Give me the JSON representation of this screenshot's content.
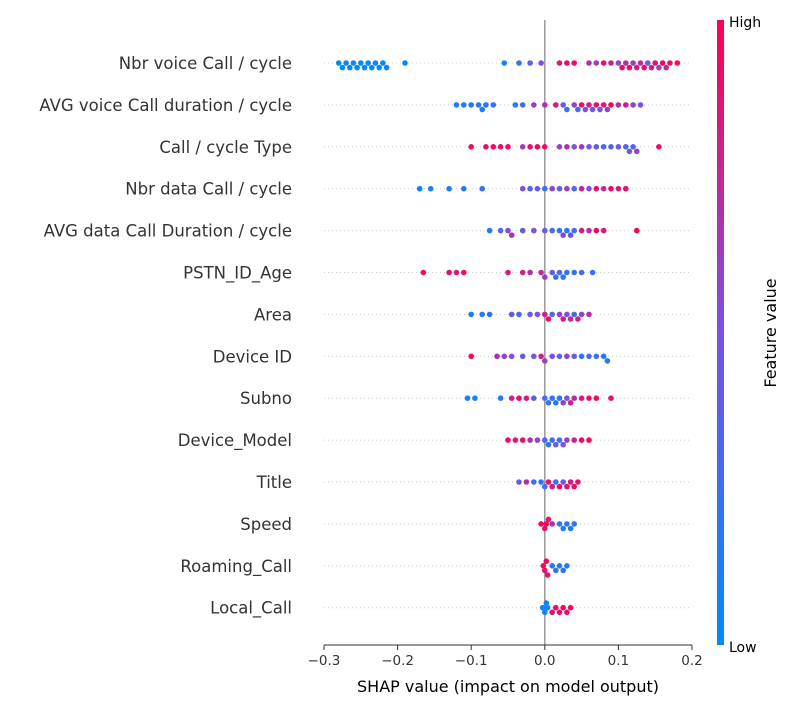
{
  "chart_data": {
    "type": "scatter",
    "subtype": "shap-beeswarm",
    "title": "",
    "xlabel": "SHAP value (impact on model output)",
    "xlim": [
      -0.3,
      0.2
    ],
    "xticks": [
      -0.3,
      -0.2,
      -0.1,
      0.0,
      0.1,
      0.2
    ],
    "xtick_labels": [
      "−0.3",
      "−0.2",
      "−0.1",
      "0.0",
      "0.1",
      "0.2"
    ],
    "colorbar": {
      "label": "Feature value",
      "high": "High",
      "low": "Low",
      "low_color": "#008bfb",
      "mid_color": "#7c52e0",
      "high_color": "#ff0052"
    },
    "features": [
      {
        "name": "Nbr voice Call / cycle",
        "points": [
          [
            -0.28,
            0
          ],
          [
            -0.275,
            0
          ],
          [
            -0.27,
            0.1
          ],
          [
            -0.265,
            0
          ],
          [
            -0.26,
            0.1
          ],
          [
            -0.255,
            0
          ],
          [
            -0.25,
            0
          ],
          [
            -0.245,
            0.1
          ],
          [
            -0.24,
            0
          ],
          [
            -0.235,
            0
          ],
          [
            -0.23,
            0.1
          ],
          [
            -0.225,
            0
          ],
          [
            -0.22,
            0
          ],
          [
            -0.215,
            0.1
          ],
          [
            -0.19,
            0
          ],
          [
            -0.055,
            0.1
          ],
          [
            -0.035,
            0.2
          ],
          [
            -0.02,
            0.4
          ],
          [
            -0.005,
            0.5
          ],
          [
            0.02,
            0.85
          ],
          [
            0.03,
            0.9
          ],
          [
            0.04,
            0.95
          ],
          [
            0.06,
            0.7
          ],
          [
            0.07,
            0.6
          ],
          [
            0.08,
            0.9
          ],
          [
            0.09,
            0.8
          ],
          [
            0.1,
            0.6
          ],
          [
            0.105,
            0.9
          ],
          [
            0.11,
            0.7
          ],
          [
            0.115,
            0.95
          ],
          [
            0.12,
            0.6
          ],
          [
            0.125,
            0.85
          ],
          [
            0.13,
            0.7
          ],
          [
            0.135,
            0.95
          ],
          [
            0.14,
            0.5
          ],
          [
            0.145,
            0.8
          ],
          [
            0.15,
            0.9
          ],
          [
            0.155,
            0.6
          ],
          [
            0.16,
            0.95
          ],
          [
            0.165,
            0.7
          ],
          [
            0.17,
            0.9
          ],
          [
            0.18,
            0.95
          ]
        ]
      },
      {
        "name": "AVG voice Call duration / cycle",
        "points": [
          [
            -0.12,
            0.1
          ],
          [
            -0.11,
            0.15
          ],
          [
            -0.1,
            0.1
          ],
          [
            -0.09,
            0.2
          ],
          [
            -0.085,
            0.1
          ],
          [
            -0.08,
            0.15
          ],
          [
            -0.07,
            0.2
          ],
          [
            -0.04,
            0.1
          ],
          [
            -0.03,
            0.3
          ],
          [
            -0.015,
            0.6
          ],
          [
            0.0,
            0.7
          ],
          [
            0.015,
            0.85
          ],
          [
            0.025,
            0.4
          ],
          [
            0.03,
            0.2
          ],
          [
            0.04,
            0.6
          ],
          [
            0.045,
            0.3
          ],
          [
            0.05,
            0.9
          ],
          [
            0.055,
            0.5
          ],
          [
            0.06,
            0.8
          ],
          [
            0.065,
            0.45
          ],
          [
            0.07,
            0.9
          ],
          [
            0.075,
            0.5
          ],
          [
            0.08,
            0.85
          ],
          [
            0.085,
            0.6
          ],
          [
            0.09,
            0.95
          ],
          [
            0.1,
            0.7
          ],
          [
            0.11,
            0.8
          ],
          [
            0.12,
            0.6
          ],
          [
            0.13,
            0.5
          ]
        ]
      },
      {
        "name": "Call / cycle Type",
        "points": [
          [
            -0.1,
            0.95
          ],
          [
            -0.08,
            0.9
          ],
          [
            -0.07,
            0.95
          ],
          [
            -0.06,
            0.9
          ],
          [
            -0.05,
            0.95
          ],
          [
            -0.03,
            0.6
          ],
          [
            -0.02,
            0.9
          ],
          [
            -0.01,
            0.95
          ],
          [
            0.0,
            0.9
          ],
          [
            0.02,
            0.6
          ],
          [
            0.03,
            0.7
          ],
          [
            0.04,
            0.5
          ],
          [
            0.05,
            0.65
          ],
          [
            0.06,
            0.5
          ],
          [
            0.07,
            0.4
          ],
          [
            0.08,
            0.3
          ],
          [
            0.09,
            0.35
          ],
          [
            0.1,
            0.4
          ],
          [
            0.11,
            0.3
          ],
          [
            0.115,
            0.45
          ],
          [
            0.12,
            0.35
          ],
          [
            0.125,
            0.6
          ],
          [
            0.155,
            0.9
          ]
        ]
      },
      {
        "name": "Nbr data Call / cycle",
        "points": [
          [
            -0.17,
            0.05
          ],
          [
            -0.155,
            0.1
          ],
          [
            -0.13,
            0.1
          ],
          [
            -0.11,
            0.15
          ],
          [
            -0.085,
            0.2
          ],
          [
            -0.03,
            0.5
          ],
          [
            -0.02,
            0.3
          ],
          [
            -0.01,
            0.45
          ],
          [
            0.0,
            0.2
          ],
          [
            0.01,
            0.6
          ],
          [
            0.02,
            0.4
          ],
          [
            0.03,
            0.6
          ],
          [
            0.04,
            0.3
          ],
          [
            0.05,
            0.8
          ],
          [
            0.06,
            0.5
          ],
          [
            0.07,
            0.9
          ],
          [
            0.08,
            0.7
          ],
          [
            0.09,
            0.95
          ],
          [
            0.1,
            0.85
          ],
          [
            0.11,
            0.9
          ]
        ]
      },
      {
        "name": "AVG data Call Duration / cycle",
        "points": [
          [
            -0.075,
            0.15
          ],
          [
            -0.06,
            0.3
          ],
          [
            -0.05,
            0.55
          ],
          [
            -0.045,
            0.7
          ],
          [
            -0.03,
            0.4
          ],
          [
            -0.015,
            0.5
          ],
          [
            0.0,
            0.4
          ],
          [
            0.01,
            0.3
          ],
          [
            0.02,
            0.2
          ],
          [
            0.025,
            0.6
          ],
          [
            0.03,
            0.15
          ],
          [
            0.035,
            0.4
          ],
          [
            0.04,
            0.25
          ],
          [
            0.05,
            0.8
          ],
          [
            0.06,
            0.7
          ],
          [
            0.07,
            0.9
          ],
          [
            0.08,
            0.85
          ],
          [
            0.125,
            0.95
          ]
        ]
      },
      {
        "name": "PSTN_ID_Age",
        "points": [
          [
            -0.165,
            0.95
          ],
          [
            -0.13,
            0.9
          ],
          [
            -0.12,
            0.85
          ],
          [
            -0.11,
            0.9
          ],
          [
            -0.05,
            0.85
          ],
          [
            -0.03,
            0.8
          ],
          [
            -0.02,
            0.7
          ],
          [
            -0.005,
            0.75
          ],
          [
            0.0,
            0.6
          ],
          [
            0.01,
            0.4
          ],
          [
            0.015,
            0.2
          ],
          [
            0.02,
            0.3
          ],
          [
            0.025,
            0.15
          ],
          [
            0.03,
            0.25
          ],
          [
            0.04,
            0.2
          ],
          [
            0.05,
            0.3
          ],
          [
            0.065,
            0.2
          ]
        ]
      },
      {
        "name": "Area",
        "points": [
          [
            -0.1,
            0.1
          ],
          [
            -0.085,
            0.15
          ],
          [
            -0.075,
            0.2
          ],
          [
            -0.045,
            0.4
          ],
          [
            -0.035,
            0.3
          ],
          [
            -0.02,
            0.45
          ],
          [
            -0.01,
            0.5
          ],
          [
            0.0,
            0.8
          ],
          [
            0.005,
            0.9
          ],
          [
            0.01,
            0.3
          ],
          [
            0.02,
            0.6
          ],
          [
            0.025,
            0.85
          ],
          [
            0.03,
            0.5
          ],
          [
            0.035,
            0.7
          ],
          [
            0.04,
            0.3
          ],
          [
            0.045,
            0.8
          ],
          [
            0.05,
            0.6
          ],
          [
            0.06,
            0.7
          ]
        ]
      },
      {
        "name": "Device ID",
        "points": [
          [
            -0.1,
            0.95
          ],
          [
            -0.065,
            0.7
          ],
          [
            -0.055,
            0.6
          ],
          [
            -0.045,
            0.5
          ],
          [
            -0.03,
            0.4
          ],
          [
            -0.015,
            0.45
          ],
          [
            -0.005,
            0.8
          ],
          [
            0.0,
            0.6
          ],
          [
            0.01,
            0.5
          ],
          [
            0.02,
            0.35
          ],
          [
            0.03,
            0.6
          ],
          [
            0.04,
            0.4
          ],
          [
            0.05,
            0.2
          ],
          [
            0.06,
            0.3
          ],
          [
            0.07,
            0.25
          ],
          [
            0.08,
            0.15
          ],
          [
            0.085,
            0.2
          ]
        ]
      },
      {
        "name": "Subno",
        "points": [
          [
            -0.105,
            0.1
          ],
          [
            -0.095,
            0.1
          ],
          [
            -0.06,
            0.15
          ],
          [
            -0.045,
            0.8
          ],
          [
            -0.035,
            0.9
          ],
          [
            -0.025,
            0.85
          ],
          [
            -0.015,
            0.4
          ],
          [
            0.0,
            0.3
          ],
          [
            0.005,
            0.2
          ],
          [
            0.01,
            0.25
          ],
          [
            0.015,
            0.15
          ],
          [
            0.02,
            0.2
          ],
          [
            0.025,
            0.6
          ],
          [
            0.03,
            0.5
          ],
          [
            0.035,
            0.8
          ],
          [
            0.04,
            0.7
          ],
          [
            0.05,
            0.85
          ],
          [
            0.06,
            0.9
          ],
          [
            0.07,
            0.95
          ],
          [
            0.09,
            0.9
          ]
        ]
      },
      {
        "name": "Device_Model",
        "points": [
          [
            -0.05,
            0.9
          ],
          [
            -0.04,
            0.85
          ],
          [
            -0.03,
            0.9
          ],
          [
            -0.02,
            0.7
          ],
          [
            -0.01,
            0.6
          ],
          [
            0.0,
            0.3
          ],
          [
            0.005,
            0.2
          ],
          [
            0.01,
            0.25
          ],
          [
            0.015,
            0.4
          ],
          [
            0.02,
            0.3
          ],
          [
            0.025,
            0.5
          ],
          [
            0.03,
            0.6
          ],
          [
            0.04,
            0.8
          ],
          [
            0.05,
            0.9
          ],
          [
            0.06,
            0.95
          ]
        ]
      },
      {
        "name": "Title",
        "points": [
          [
            -0.035,
            0.4
          ],
          [
            -0.025,
            0.7
          ],
          [
            -0.015,
            0.2
          ],
          [
            -0.005,
            0.15
          ],
          [
            0.0,
            0.3
          ],
          [
            0.005,
            0.9
          ],
          [
            0.01,
            0.85
          ],
          [
            0.015,
            0.2
          ],
          [
            0.02,
            0.95
          ],
          [
            0.025,
            0.4
          ],
          [
            0.03,
            0.9
          ],
          [
            0.035,
            0.85
          ],
          [
            0.04,
            0.95
          ],
          [
            0.045,
            0.9
          ]
        ]
      },
      {
        "name": "Speed",
        "points": [
          [
            -0.005,
            0.95
          ],
          [
            0.0,
            0.9
          ],
          [
            0.002,
            0.95
          ],
          [
            0.005,
            0.85
          ],
          [
            0.01,
            0.7
          ],
          [
            0.02,
            0.2
          ],
          [
            0.025,
            0.15
          ],
          [
            0.03,
            0.2
          ],
          [
            0.035,
            0.15
          ],
          [
            0.04,
            0.2
          ]
        ]
      },
      {
        "name": "Roaming_Call",
        "points": [
          [
            -0.002,
            0.95
          ],
          [
            0.0,
            0.9
          ],
          [
            0.002,
            0.95
          ],
          [
            0.004,
            0.9
          ],
          [
            0.01,
            0.2
          ],
          [
            0.015,
            0.2
          ],
          [
            0.02,
            0.15
          ],
          [
            0.025,
            0.2
          ],
          [
            0.03,
            0.15
          ]
        ]
      },
      {
        "name": "Local_Call",
        "points": [
          [
            -0.003,
            0.05
          ],
          [
            0.0,
            0.1
          ],
          [
            0.002,
            0.05
          ],
          [
            0.004,
            0.1
          ],
          [
            0.01,
            0.9
          ],
          [
            0.015,
            0.95
          ],
          [
            0.02,
            0.9
          ],
          [
            0.025,
            0.95
          ],
          [
            0.03,
            0.9
          ],
          [
            0.035,
            0.95
          ]
        ]
      }
    ]
  }
}
